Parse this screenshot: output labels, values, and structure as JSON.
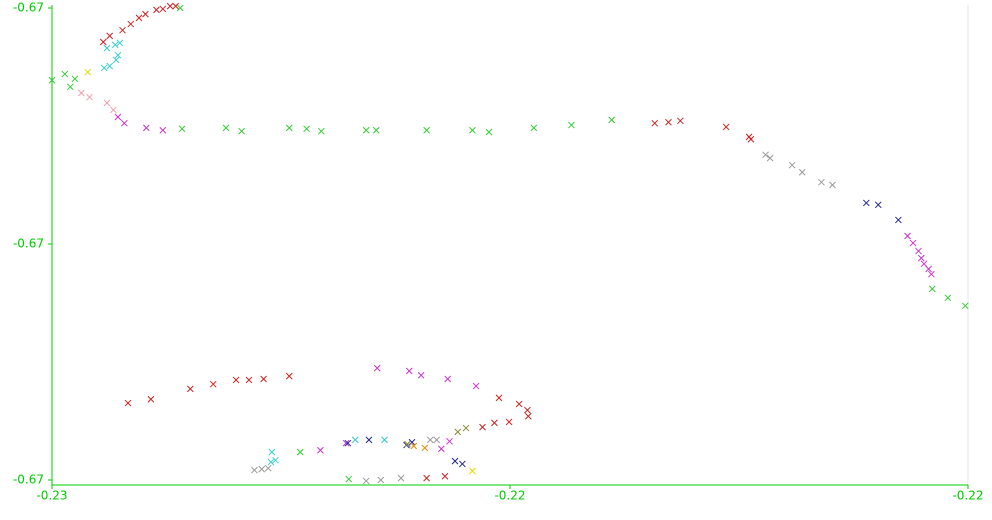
{
  "chart_data": {
    "type": "scatter",
    "xlim": [
      -0.2254,
      -0.2154
    ],
    "ylim": [
      -0.67,
      -0.669
    ],
    "xticks": [
      {
        "value": -0.2254,
        "label": "-0.23"
      },
      {
        "value": -0.2204,
        "label": "-0.22"
      },
      {
        "value": -0.2154,
        "label": "-0.22"
      }
    ],
    "yticks": [
      {
        "value": -0.67,
        "label": "-0.67"
      },
      {
        "value": -0.6695,
        "label": "-0.67"
      },
      {
        "value": -0.669,
        "label": "-0.67"
      }
    ],
    "axis_color": "#00cc00",
    "series": [
      {
        "color": "#33cc33",
        "x": [
          -0.2254,
          -0.22526,
          -0.2252,
          -0.22515,
          -0.22398,
          -0.2235,
          -0.22333,
          -0.22281,
          -0.22262,
          -0.22246,
          -0.22197,
          -0.22186,
          -0.22131,
          -0.22081,
          -0.22063,
          -0.22014,
          -0.21973,
          -0.21929,
          -0.21579,
          -0.21562,
          -0.21543,
          -0.224,
          -0.22216,
          -0.22269
        ],
        "y": [
          -0.669153,
          -0.66914,
          -0.669167,
          -0.66915,
          -0.669256,
          -0.669254,
          -0.669261,
          -0.669254,
          -0.669256,
          -0.669261,
          -0.669259,
          -0.669259,
          -0.669259,
          -0.669259,
          -0.669263,
          -0.669254,
          -0.669248,
          -0.669237,
          -0.669595,
          -0.669614,
          -0.669631,
          -0.669,
          -0.669998,
          -0.669941
        ]
      },
      {
        "color": "#cc2222",
        "x": [
          -0.22484,
          -0.22477,
          -0.22463,
          -0.22454,
          -0.22445,
          -0.22438,
          -0.22426,
          -0.22419,
          -0.22411,
          -0.22405,
          -0.21882,
          -0.21867,
          -0.21854,
          -0.21804,
          -0.21779,
          -0.21777,
          -0.22457,
          -0.22432,
          -0.22389,
          -0.22364,
          -0.22339,
          -0.22325,
          -0.22309,
          -0.22281,
          -0.22052,
          -0.2203,
          -0.22021,
          -0.2202,
          -0.22041,
          -0.22057,
          -0.2207,
          -0.22131,
          -0.22111
        ],
        "y": [
          -0.669072,
          -0.669059,
          -0.669047,
          -0.669034,
          -0.669021,
          -0.669013,
          -0.669004,
          -0.669002,
          -0.668996,
          -0.668996,
          -0.669244,
          -0.669242,
          -0.669239,
          -0.669252,
          -0.669273,
          -0.669278,
          -0.669837,
          -0.669829,
          -0.669807,
          -0.669797,
          -0.669788,
          -0.669788,
          -0.669786,
          -0.66978,
          -0.669826,
          -0.669839,
          -0.669852,
          -0.669865,
          -0.669877,
          -0.669879,
          -0.669888,
          -0.669996,
          -0.669992
        ]
      },
      {
        "color": "#999999",
        "x": [
          -0.21761,
          -0.21756,
          -0.21732,
          -0.21721,
          -0.217,
          -0.21688,
          -0.22319,
          -0.22311,
          -0.22304,
          -0.22197,
          -0.22181,
          -0.22159,
          -0.22127,
          -0.2212
        ],
        "y": [
          -0.669311,
          -0.669318,
          -0.669333,
          -0.669348,
          -0.669369,
          -0.669375,
          -0.669979,
          -0.669977,
          -0.669975,
          -0.670002,
          -0.67,
          -0.669996,
          -0.669915,
          -0.669915
        ]
      },
      {
        "color": "#cc33cc",
        "x": [
          -0.22468,
          -0.22461,
          -0.22437,
          -0.22419,
          -0.21606,
          -0.216,
          -0.21594,
          -0.21591,
          -0.21588,
          -0.21583,
          -0.2158,
          -0.22185,
          -0.2215,
          -0.22137,
          -0.22108,
          -0.22077,
          -0.22106,
          -0.22115,
          -0.22247,
          -0.22219
        ],
        "y": [
          -0.669231,
          -0.669244,
          -0.669254,
          -0.669259,
          -0.669483,
          -0.669498,
          -0.669515,
          -0.66953,
          -0.669542,
          -0.669553,
          -0.669564,
          -0.669763,
          -0.669769,
          -0.669778,
          -0.669786,
          -0.669801,
          -0.669918,
          -0.669934,
          -0.669937,
          -0.669922
        ]
      },
      {
        "color": "#33cccc",
        "x": [
          -0.2248,
          -0.22471,
          -0.22466,
          -0.22468,
          -0.22483,
          -0.22477,
          -0.2247,
          -0.223,
          -0.22301,
          -0.22296,
          -0.22209,
          -0.22177
        ],
        "y": [
          -0.669085,
          -0.669078,
          -0.669074,
          -0.6691,
          -0.669127,
          -0.669123,
          -0.66911,
          -0.669941,
          -0.669962,
          -0.669958,
          -0.669915,
          -0.669915
        ]
      },
      {
        "color": "#222299",
        "x": [
          -0.21651,
          -0.21638,
          -0.21616,
          -0.22194,
          -0.22153,
          -0.22147,
          -0.221,
          -0.22092,
          -0.22217
        ],
        "y": [
          -0.669413,
          -0.669417,
          -0.669449,
          -0.669915,
          -0.669926,
          -0.66992,
          -0.66996,
          -0.669966,
          -0.669922
        ]
      },
      {
        "color": "#f0a0b0",
        "x": [
          -0.22508,
          -0.22499,
          -0.2248,
          -0.22473
        ],
        "y": [
          -0.66918,
          -0.669189,
          -0.669201,
          -0.669216
        ]
      },
      {
        "color": "#dddd00",
        "x": [
          -0.22501,
          -0.22081
        ],
        "y": [
          -0.669136,
          -0.669981
        ]
      },
      {
        "color": "#888833",
        "x": [
          -0.22097,
          -0.22088,
          -0.22152
        ],
        "y": [
          -0.669898,
          -0.66989,
          -0.669924
        ]
      },
      {
        "color": "#ee8800",
        "x": [
          -0.22145,
          -0.22133
        ],
        "y": [
          -0.669928,
          -0.669932
        ]
      }
    ]
  }
}
